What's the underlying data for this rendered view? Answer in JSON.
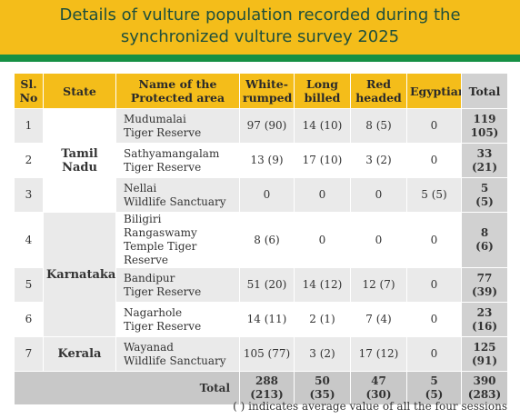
{
  "title_line1": "Details of vulture population recorded during the",
  "title_line2": "synchronized vulture survey 2025",
  "headers": {
    "sl_no": [
      "Sl.",
      "No"
    ],
    "state": "State",
    "area": [
      "Name of the",
      "Protected area"
    ],
    "white_rumped": [
      "White-",
      "rumped"
    ],
    "long_billed": [
      "Long",
      "billed"
    ],
    "red_headed": [
      "Red",
      "headed"
    ],
    "egyptian": "Egyptian",
    "total": "Total"
  },
  "states": [
    "Tamil Nadu",
    "Karnataka",
    "Kerala"
  ],
  "rows": [
    {
      "sl": "1",
      "area": [
        "Mudumalai",
        "Tiger Reserve"
      ],
      "white": "97 (90)",
      "long": "14 (10)",
      "red": "8 (5)",
      "egypt": "0",
      "total": [
        "119",
        "105)"
      ]
    },
    {
      "sl": "2",
      "area": [
        "Sathyamangalam",
        "Tiger Reserve"
      ],
      "white": "13 (9)",
      "long": "17 (10)",
      "red": "3 (2)",
      "egypt": "0",
      "total": [
        "33",
        "(21)"
      ]
    },
    {
      "sl": "3",
      "area": [
        "Nellai",
        "Wildlife Sanctuary"
      ],
      "white": "0",
      "long": "0",
      "red": "0",
      "egypt": "5 (5)",
      "total": [
        "5",
        "(5)"
      ]
    },
    {
      "sl": "4",
      "area": [
        "Biligiri Rangaswamy",
        "Temple Tiger Reserve"
      ],
      "white": "8 (6)",
      "long": "0",
      "red": "0",
      "egypt": "0",
      "total": [
        "8",
        "(6)"
      ]
    },
    {
      "sl": "5",
      "area": [
        "Bandipur",
        "Tiger Reserve"
      ],
      "white": "51 (20)",
      "long": "14 (12)",
      "red": "12 (7)",
      "egypt": "0",
      "total": [
        "77",
        "(39)"
      ]
    },
    {
      "sl": "6",
      "area": [
        "Nagarhole",
        "Tiger Reserve"
      ],
      "white": "14 (11)",
      "long": "2 (1)",
      "red": "7 (4)",
      "egypt": "0",
      "total": [
        "23",
        "(16)"
      ]
    },
    {
      "sl": "7",
      "area": [
        "Wayanad",
        "Wildlife Sanctuary"
      ],
      "white": "105 (77)",
      "long": "3 (2)",
      "red": "17 (12)",
      "egypt": "0",
      "total": [
        "125",
        "(91)"
      ]
    }
  ],
  "totals": {
    "label": "Total",
    "white": [
      "288",
      "(213)"
    ],
    "long": [
      "50",
      "(35)"
    ],
    "red": [
      "47",
      "(30)"
    ],
    "egypt": [
      "5",
      "(5)"
    ],
    "total": [
      "390",
      "(283)"
    ]
  },
  "footnote": "( ) indicates average value of all the four sessions",
  "colors": {
    "banner": "#f4bd1a",
    "stripe": "#169044",
    "title_text": "#1f4f3c",
    "row_grey": "#eaeaea",
    "total_grey": "#d1d1d1"
  }
}
